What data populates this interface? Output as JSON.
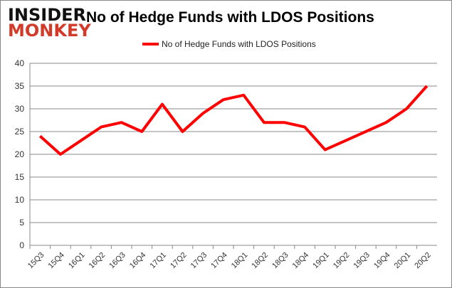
{
  "logo": {
    "line1": "INSIDER",
    "line2": "MONKEY"
  },
  "chart_data": {
    "type": "line",
    "title": "No of Hedge Funds with LDOS Positions",
    "categories": [
      "15Q3",
      "15Q4",
      "16Q1",
      "16Q2",
      "16Q3",
      "16Q4",
      "17Q1",
      "17Q2",
      "17Q3",
      "17Q4",
      "18Q1",
      "18Q2",
      "18Q3",
      "18Q4",
      "19Q1",
      "19Q2",
      "19Q3",
      "19Q4",
      "20Q1",
      "20Q2"
    ],
    "series": [
      {
        "name": "No of Hedge Funds with LDOS Positions",
        "color": "#ff0000",
        "values": [
          24,
          20,
          23,
          26,
          27,
          25,
          31,
          25,
          29,
          32,
          33,
          27,
          27,
          26,
          21,
          23,
          25,
          27,
          30,
          35
        ]
      }
    ],
    "ylim": [
      0,
      40
    ],
    "yticks": [
      0,
      5,
      10,
      15,
      20,
      25,
      30,
      35,
      40
    ],
    "grid": true,
    "legend": "top-center"
  }
}
